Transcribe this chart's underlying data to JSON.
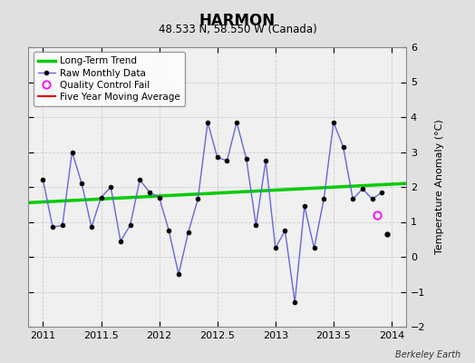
{
  "title": "HARMON",
  "subtitle": "48.533 N, 58.550 W (Canada)",
  "ylabel": "Temperature Anomaly (°C)",
  "watermark": "Berkeley Earth",
  "xlim": [
    2010.875,
    2014.125
  ],
  "ylim": [
    -2,
    6
  ],
  "yticks": [
    -2,
    -1,
    0,
    1,
    2,
    3,
    4,
    5,
    6
  ],
  "xticks": [
    2011,
    2011.5,
    2012,
    2012.5,
    2013,
    2013.5,
    2014
  ],
  "background_color": "#e0e0e0",
  "plot_background": "#f0f0f0",
  "raw_x": [
    2011.0,
    2011.083,
    2011.167,
    2011.25,
    2011.333,
    2011.417,
    2011.5,
    2011.583,
    2011.667,
    2011.75,
    2011.833,
    2011.917,
    2012.0,
    2012.083,
    2012.167,
    2012.25,
    2012.333,
    2012.417,
    2012.5,
    2012.583,
    2012.667,
    2012.75,
    2012.833,
    2012.917,
    2013.0,
    2013.083,
    2013.167,
    2013.25,
    2013.333,
    2013.417,
    2013.5,
    2013.583,
    2013.667,
    2013.75,
    2013.833,
    2013.917
  ],
  "raw_y": [
    2.2,
    0.85,
    0.9,
    3.0,
    2.1,
    0.85,
    1.7,
    2.0,
    0.45,
    0.9,
    2.2,
    1.85,
    1.7,
    0.75,
    -0.5,
    0.7,
    1.65,
    3.85,
    2.85,
    2.75,
    3.85,
    2.8,
    0.9,
    2.75,
    0.25,
    0.75,
    -1.3,
    1.45,
    0.25,
    1.65,
    3.85,
    3.15,
    1.65,
    1.95,
    1.65,
    1.85
  ],
  "isolated_x": [
    2013.958
  ],
  "isolated_y": [
    0.65
  ],
  "qc_fail_x": [
    2013.875
  ],
  "qc_fail_y": [
    1.2
  ],
  "trend_x": [
    2010.875,
    2014.125
  ],
  "trend_y": [
    1.55,
    2.1
  ],
  "raw_line_color": "#6666dd",
  "raw_marker_color": "#000000",
  "trend_color": "#00cc00",
  "qc_color": "#ff00ff",
  "moving_avg_color": "#dd0000",
  "legend_bg": "#ffffff"
}
